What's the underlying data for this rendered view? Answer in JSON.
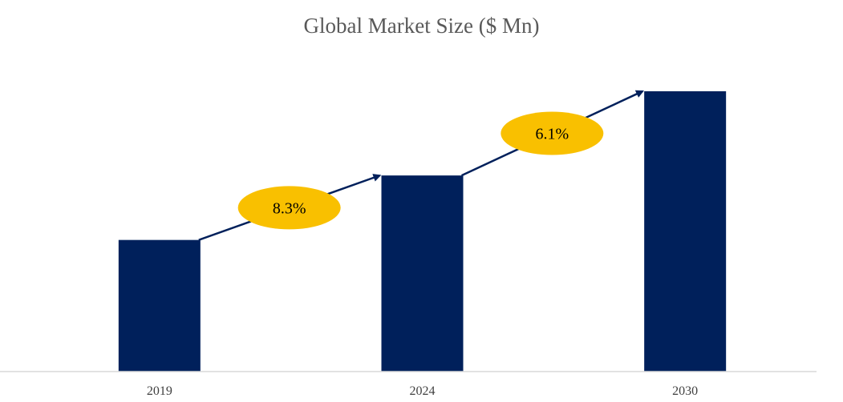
{
  "chart_data": {
    "type": "bar",
    "title": "Global Market Size ($ Mn)",
    "categories": [
      "2019",
      "2024",
      "2030"
    ],
    "values": [
      100,
      149,
      213
    ],
    "ylim": [
      0,
      230
    ],
    "grid": false,
    "annotations": [
      {
        "from": "2019",
        "to": "2024",
        "label": "8.3%"
      },
      {
        "from": "2024",
        "to": "2030",
        "label": "6.1%"
      }
    ],
    "colors": {
      "bar": "#00205b",
      "arrow": "#00205b",
      "badge": "#f9c000",
      "axis": "#d9d9d9"
    }
  }
}
